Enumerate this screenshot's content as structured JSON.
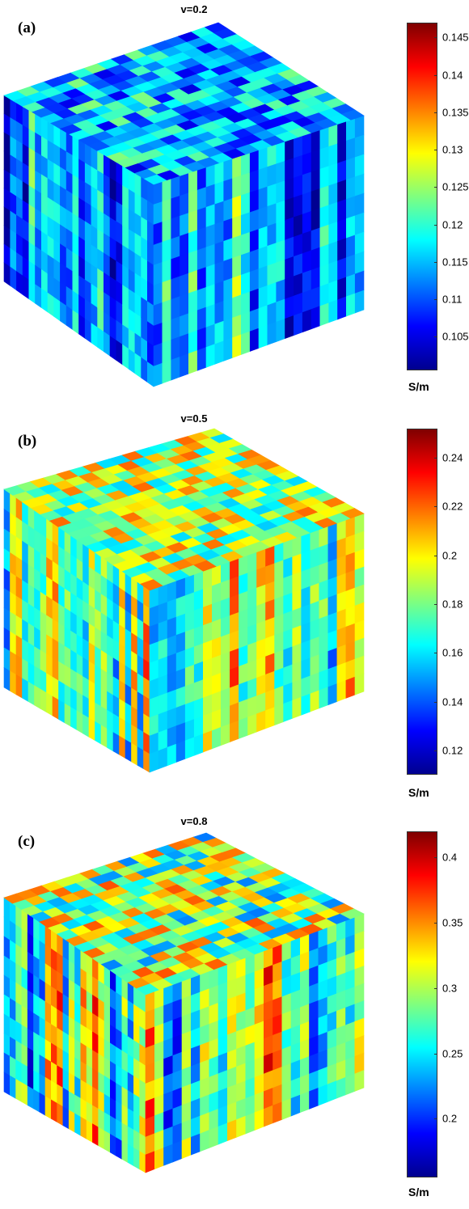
{
  "panels": [
    {
      "letter": "(a)",
      "title": "v=0.2",
      "colorbar": {
        "ticks": [
          "0.145",
          "0.14",
          "0.135",
          "0.13",
          "0.125",
          "0.12",
          "0.115",
          "0.11",
          "0.105"
        ],
        "unit": "S/m",
        "range": [
          0.1005,
          0.147
        ]
      },
      "field_character": "mostly blue/cyan with sparse yellow streaks"
    },
    {
      "letter": "(b)",
      "title": "v=0.5",
      "colorbar": {
        "ticks": [
          "0.24",
          "0.22",
          "0.2",
          "0.18",
          "0.16",
          "0.14",
          "0.12"
        ],
        "unit": "S/m",
        "range": [
          0.11,
          0.252
        ]
      },
      "field_character": "cyan/yellow mix with orange patches"
    },
    {
      "letter": "(c)",
      "title": "v=0.8",
      "colorbar": {
        "ticks": [
          "0.4",
          "0.35",
          "0.3",
          "0.25",
          "0.2"
        ],
        "unit": "S/m",
        "range": [
          0.155,
          0.42
        ]
      },
      "field_character": "cyan/yellow with prominent orange/red streaks"
    }
  ],
  "colors": {
    "colormap": [
      "#00008f",
      "#0000ff",
      "#007fff",
      "#00ffff",
      "#7fff7f",
      "#ffff00",
      "#ff7f00",
      "#ff0000",
      "#7f0000"
    ]
  }
}
